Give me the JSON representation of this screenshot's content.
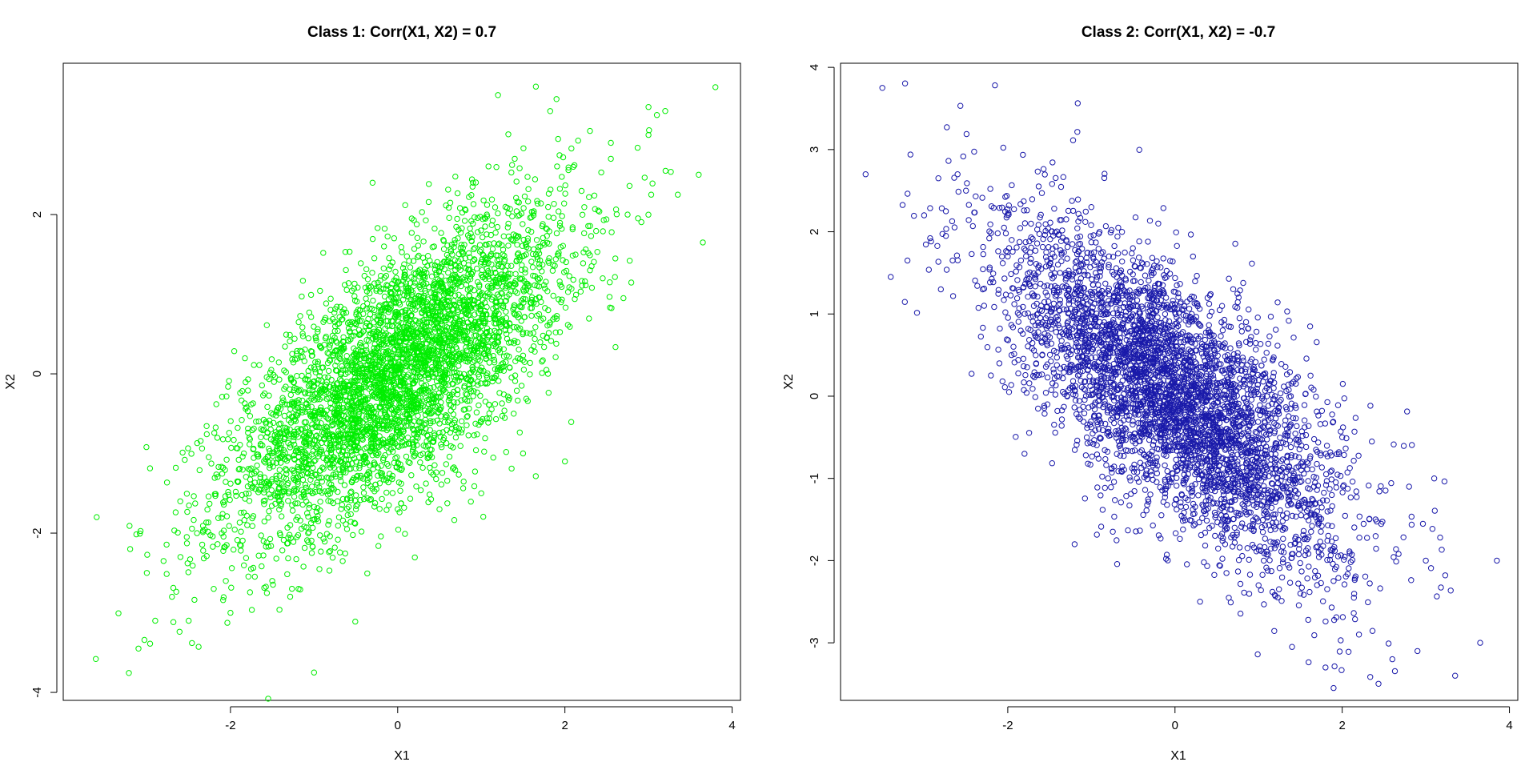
{
  "chart_data": [
    {
      "type": "scatter",
      "title": "Class 1: Corr(X1, X2) = 0.7",
      "xlabel": "X1",
      "ylabel": "X2",
      "xlim": [
        -4.0,
        4.1
      ],
      "ylim": [
        -4.1,
        3.9
      ],
      "x_ticks": [
        -2,
        0,
        2,
        4
      ],
      "y_ticks": [
        -4,
        -2,
        0,
        2
      ],
      "x_tick_labels": [
        "-2",
        "0",
        "2",
        "4"
      ],
      "y_tick_labels": [
        "-4",
        "-2",
        "0",
        "2"
      ],
      "marker": "open-circle",
      "color": "#00ee00",
      "grid": false,
      "legend": "none",
      "series": [
        {
          "correlation": 0.7,
          "x": [
            3.8,
            1.2,
            1.9,
            3.0,
            3.1,
            3.6,
            3.35,
            3.65,
            2.75,
            2.55,
            2.3,
            3.0,
            3.2,
            2.55,
            2.1,
            -3.6,
            -3.2,
            -3.1,
            -1.0,
            -2.5,
            -2.9,
            -2.7,
            -2.0,
            -1.5,
            -2.2,
            -3.0,
            -2.8,
            -2.4,
            -1.8,
            -2.6,
            -1.3,
            -0.8,
            0.0,
            0.5,
            1.0,
            1.5,
            2.0,
            1.6,
            0.7,
            -0.5,
            0.3,
            1.1,
            0.9,
            1.4,
            -0.3,
            2.3,
            2.7,
            1.7,
            0.2,
            -1.1,
            0.8,
            1.3,
            -0.6,
            0.4,
            1.8,
            -1.6,
            -1.9,
            -0.2,
            0.1,
            0.6
          ],
          "y": [
            3.6,
            3.5,
            3.45,
            3.35,
            3.25,
            2.5,
            2.25,
            1.65,
            2.0,
            2.9,
            3.05,
            3.0,
            3.3,
            2.7,
            2.6,
            -1.8,
            -2.2,
            -3.45,
            -3.75,
            -3.1,
            -3.1,
            -2.8,
            -3.0,
            -2.6,
            -2.7,
            -2.5,
            -2.35,
            -2.0,
            -1.9,
            -1.6,
            -1.5,
            -1.6,
            -1.7,
            -1.7,
            -1.5,
            -1.0,
            -1.1,
            0.3,
            0.6,
            0.1,
            0.9,
            1.0,
            2.4,
            2.7,
            2.4,
            1.3,
            0.95,
            1.2,
            -0.3,
            -1.0,
            0.2,
            0.5,
            -0.8,
            -0.5,
            0.8,
            -0.7,
            -1.2,
            0.0,
            0.4,
            0.7
          ]
        }
      ]
    },
    {
      "type": "scatter",
      "title": "Class 2: Corr(X1, X2) = -0.7",
      "xlabel": "X1",
      "ylabel": "X2",
      "xlim": [
        -4.0,
        4.1
      ],
      "ylim": [
        -3.7,
        4.05
      ],
      "x_ticks": [
        -2,
        0,
        2,
        4
      ],
      "y_ticks": [
        -3,
        -2,
        -1,
        0,
        1,
        2,
        3,
        4
      ],
      "x_tick_labels": [
        "-2",
        "0",
        "2",
        "4"
      ],
      "y_tick_labels": [
        "-3",
        "-2",
        "-1",
        "0",
        "1",
        "2",
        "3",
        "4"
      ],
      "marker": "open-circle",
      "color": "#1a1aaa",
      "grid": false,
      "legend": "none",
      "series": [
        {
          "correlation": -0.7,
          "x": [
            -3.5,
            -3.7,
            -3.4,
            -3.2,
            -3.0,
            -2.8,
            -2.5,
            -2.1,
            -1.8,
            -1.4,
            -1.2,
            -1.0,
            -0.6,
            -0.2,
            0.2,
            0.6,
            1.0,
            1.4,
            1.8,
            2.2,
            2.6,
            3.0,
            3.1,
            3.35,
            3.65,
            3.85,
            2.9,
            2.4,
            1.5,
            1.2,
            0.4,
            -0.4,
            -1.1,
            -1.6,
            -2.3,
            -2.6,
            -0.8,
            0.8,
            1.7,
            2.8,
            -1.3,
            -0.5,
            0.5,
            1.3,
            2.0,
            -2.0,
            0.0,
            1.1,
            -0.9,
            0.3
          ],
          "y": [
            3.75,
            2.7,
            1.45,
            1.65,
            2.2,
            1.3,
            2.5,
            0.4,
            -0.7,
            1.6,
            -1.8,
            2.3,
            0.5,
            2.1,
            1.0,
            -1.8,
            -2.3,
            -3.05,
            -3.3,
            -2.9,
            -3.2,
            -2.0,
            -1.0,
            -3.4,
            -3.0,
            -2.0,
            -3.1,
            -1.5,
            -2.4,
            -0.6,
            0.8,
            0.9,
            0.6,
            1.1,
            1.3,
            2.7,
            -1.0,
            -0.2,
            -1.4,
            -1.1,
            1.9,
            1.4,
            -0.9,
            -1.9,
            -0.5,
            1.7,
            0.2,
            0.0,
            -0.3,
            -2.5
          ]
        }
      ]
    }
  ]
}
